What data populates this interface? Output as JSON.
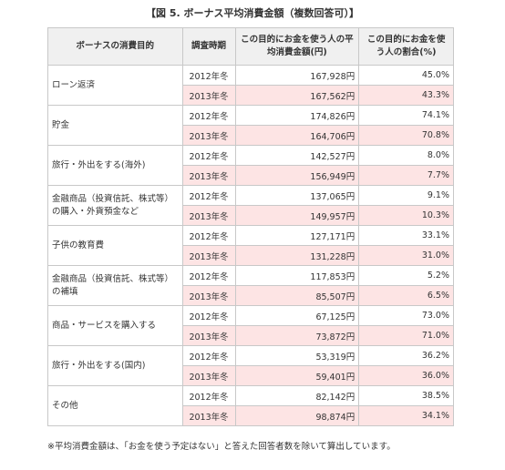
{
  "title": "【図 5. ボーナス平均消費金額（複数回答可）】",
  "table": {
    "header": [
      "ボーナスの消費目的",
      "調査時期",
      "この目的にお金を使う人の平均消費金額(円)",
      "この目的にお金を使う人の割合(%)"
    ],
    "rows": [
      {
        "purpose": "ローン返済",
        "entries": [
          {
            "period": "2012年冬",
            "amount": "167,928円",
            "share": "45.0%"
          },
          {
            "period": "2013年冬",
            "amount": "167,562円",
            "share": "43.3%"
          }
        ]
      },
      {
        "purpose": "貯金",
        "entries": [
          {
            "period": "2012年冬",
            "amount": "174,826円",
            "share": "74.1%"
          },
          {
            "period": "2013年冬",
            "amount": "164,706円",
            "share": "70.8%"
          }
        ]
      },
      {
        "purpose": "旅行・外出をする(海外)",
        "entries": [
          {
            "period": "2012年冬",
            "amount": "142,527円",
            "share": "8.0%"
          },
          {
            "period": "2013年冬",
            "amount": "156,949円",
            "share": "7.7%"
          }
        ]
      },
      {
        "purpose": "金融商品（投資信託、株式等）の購入・外貨預金など",
        "entries": [
          {
            "period": "2012年冬",
            "amount": "137,065円",
            "share": "9.1%"
          },
          {
            "period": "2013年冬",
            "amount": "149,957円",
            "share": "10.3%"
          }
        ]
      },
      {
        "purpose": "子供の教育費",
        "entries": [
          {
            "period": "2012年冬",
            "amount": "127,171円",
            "share": "33.1%"
          },
          {
            "period": "2013年冬",
            "amount": "131,228円",
            "share": "31.0%"
          }
        ]
      },
      {
        "purpose": "金融商品（投資信託、株式等）の補填",
        "entries": [
          {
            "period": "2012年冬",
            "amount": "117,853円",
            "share": "5.2%"
          },
          {
            "period": "2013年冬",
            "amount": "85,507円",
            "share": "6.5%"
          }
        ]
      },
      {
        "purpose": "商品・サービスを購入する",
        "entries": [
          {
            "period": "2012年冬",
            "amount": "67,125円",
            "share": "73.0%"
          },
          {
            "period": "2013年冬",
            "amount": "73,872円",
            "share": "71.0%"
          }
        ]
      },
      {
        "purpose": "旅行・外出をする(国内)",
        "entries": [
          {
            "period": "2012年冬",
            "amount": "53,319円",
            "share": "36.2%"
          },
          {
            "period": "2013年冬",
            "amount": "59,401円",
            "share": "36.0%"
          }
        ]
      },
      {
        "purpose": "その他",
        "entries": [
          {
            "period": "2012年冬",
            "amount": "82,142円",
            "share": "38.5%"
          },
          {
            "period": "2013年冬",
            "amount": "98,874円",
            "share": "34.1%"
          }
        ]
      }
    ]
  },
  "footnote": "※平均消費金額は、「お金を使う予定はない」と答えた回答者数を除いて算出しています。"
}
